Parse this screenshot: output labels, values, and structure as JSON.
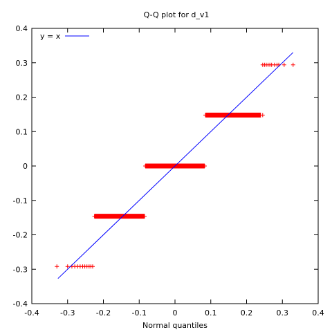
{
  "chart_data": {
    "type": "scatter",
    "title": "Q-Q plot for d_v1",
    "xlabel": "Normal quantiles",
    "ylabel": "",
    "xlim": [
      -0.4,
      0.4
    ],
    "ylim": [
      -0.4,
      0.4
    ],
    "xticks": [
      -0.4,
      -0.3,
      -0.2,
      -0.1,
      0,
      0.1,
      0.2,
      0.3,
      0.4
    ],
    "yticks": [
      -0.4,
      -0.3,
      -0.2,
      -0.1,
      0,
      0.1,
      0.2,
      0.3,
      0.4
    ],
    "xtick_labels": [
      "-0.4",
      "-0.3",
      "-0.2",
      "-0.1",
      "0",
      "0.1",
      "0.2",
      "0.3",
      "0.4"
    ],
    "ytick_labels": [
      "-0.4",
      "-0.3",
      "-0.2",
      "-0.1",
      "0",
      "0.1",
      "0.2",
      "0.3",
      "0.4"
    ],
    "grid": false,
    "legend_position": "top-left",
    "series": [
      {
        "name": "y = x",
        "kind": "line",
        "color": "#0000ff",
        "x": [
          -0.327,
          0.33
        ],
        "y": [
          -0.327,
          0.33
        ]
      },
      {
        "kind": "points",
        "marker": "+",
        "color": "#ff0000",
        "points": [
          [
            -0.33,
            -0.292
          ],
          [
            -0.3,
            -0.292
          ],
          [
            -0.288,
            -0.292
          ],
          [
            -0.28,
            -0.292
          ],
          [
            -0.272,
            -0.292
          ],
          [
            -0.265,
            -0.292
          ],
          [
            -0.258,
            -0.292
          ],
          [
            -0.252,
            -0.292
          ],
          [
            -0.246,
            -0.292
          ],
          [
            -0.24,
            -0.292
          ],
          [
            -0.235,
            -0.292
          ],
          [
            -0.23,
            -0.292
          ],
          [
            -0.225,
            -0.146
          ],
          [
            -0.21,
            -0.146
          ],
          [
            -0.19,
            -0.146
          ],
          [
            -0.17,
            -0.146
          ],
          [
            -0.15,
            -0.146
          ],
          [
            -0.13,
            -0.146
          ],
          [
            -0.11,
            -0.146
          ],
          [
            -0.095,
            -0.146
          ],
          [
            -0.085,
            -0.146
          ],
          [
            -0.083,
            0.0
          ],
          [
            -0.06,
            0.0
          ],
          [
            -0.04,
            0.0
          ],
          [
            -0.02,
            0.0
          ],
          [
            0.0,
            0.0
          ],
          [
            0.02,
            0.0
          ],
          [
            0.04,
            0.0
          ],
          [
            0.06,
            0.0
          ],
          [
            0.083,
            0.0
          ],
          [
            0.085,
            0.148
          ],
          [
            0.1,
            0.148
          ],
          [
            0.12,
            0.148
          ],
          [
            0.14,
            0.148
          ],
          [
            0.16,
            0.148
          ],
          [
            0.18,
            0.148
          ],
          [
            0.2,
            0.148
          ],
          [
            0.22,
            0.148
          ],
          [
            0.235,
            0.148
          ],
          [
            0.245,
            0.148
          ],
          [
            0.245,
            0.294
          ],
          [
            0.25,
            0.294
          ],
          [
            0.255,
            0.294
          ],
          [
            0.26,
            0.294
          ],
          [
            0.265,
            0.294
          ],
          [
            0.27,
            0.294
          ],
          [
            0.278,
            0.294
          ],
          [
            0.285,
            0.294
          ],
          [
            0.29,
            0.294
          ],
          [
            0.305,
            0.294
          ],
          [
            0.33,
            0.294
          ]
        ],
        "dense_runs": [
          {
            "x": [
              -0.225,
              -0.085
            ],
            "y": -0.146
          },
          {
            "x": [
              -0.083,
              0.083
            ],
            "y": 0.0
          },
          {
            "x": [
              0.085,
              0.24
            ],
            "y": 0.148
          }
        ]
      }
    ]
  }
}
